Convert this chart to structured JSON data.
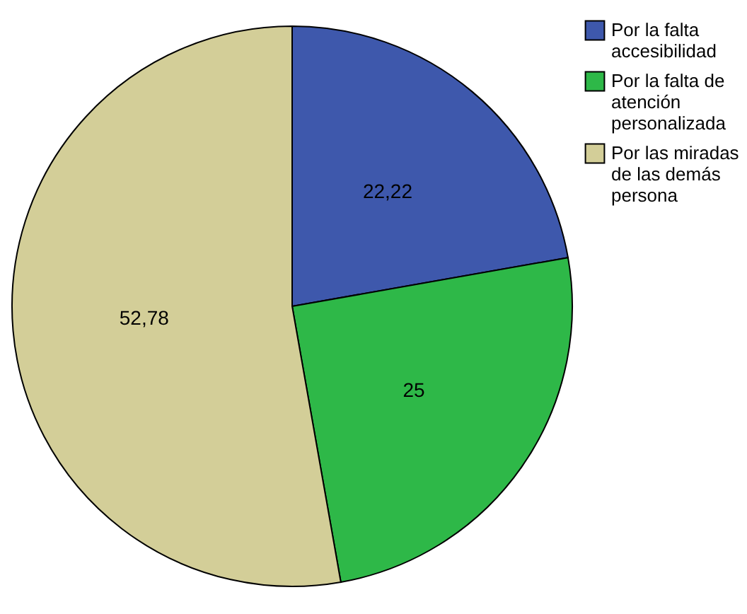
{
  "chart_data": {
    "type": "pie",
    "categories": [
      "Por la falta accesibilidad",
      "Por la falta de atención personalizada",
      "Por las miradas de las demás persona"
    ],
    "values": [
      22.22,
      25,
      52.78
    ],
    "colors": [
      "#3e58ac",
      "#2eb848",
      "#d3ce98"
    ],
    "value_labels": [
      "22,22",
      "25",
      "52,78"
    ],
    "legend": "top right"
  }
}
